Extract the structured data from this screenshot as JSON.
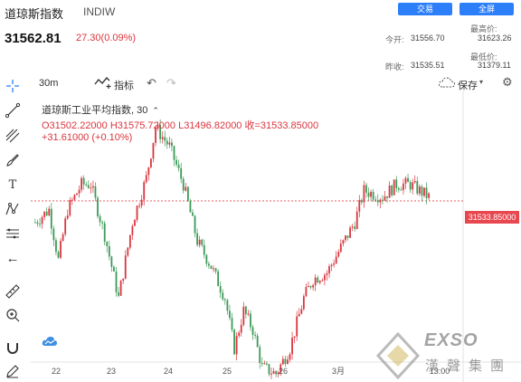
{
  "header": {
    "title": "道琼斯指数",
    "code": "INDIW",
    "price": "31562.81",
    "change": "27.30(0.09%)",
    "trade_label": "交易",
    "fullscreen_label": "全屏"
  },
  "stats": {
    "high_label": "最高价:",
    "high_value": "31623.26",
    "open_label": "今开:",
    "open_value": "31556.70",
    "low_label": "最低价:",
    "low_value": "31379.11",
    "prev_close_label": "昨收:",
    "prev_close_value": "31535.51"
  },
  "toolbar": {
    "interval": "30m",
    "indicators_label": "指标",
    "save_label": "保存"
  },
  "legend": {
    "line1": "道琼斯工业平均指数, 30",
    "line2": "O31502.22000  H31575.72000  L31496.82000  收=31533.85000",
    "line3": "+31.61000 (+0.10%)"
  },
  "chart_data": {
    "type": "candlestick",
    "x_labels": [
      "22",
      "23",
      "24",
      "25",
      "26",
      "3月",
      "13:00"
    ],
    "last_price_label": "31533.85000",
    "last_price": 31533.85,
    "colors": {
      "up": "#d9363e",
      "down": "#3c9a58"
    }
  },
  "watermark": {
    "text1": "EXSO",
    "text2": "漢聲集團"
  }
}
